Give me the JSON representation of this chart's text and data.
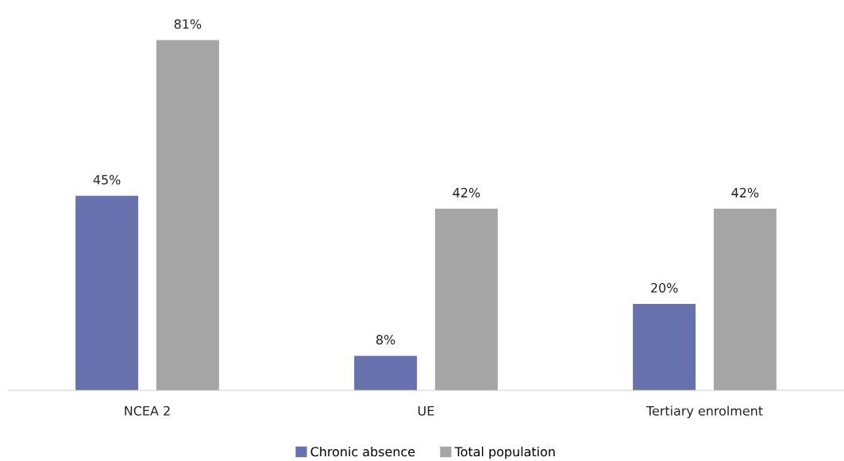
{
  "chart_data": {
    "type": "bar",
    "categories": [
      "NCEA 2",
      "UE",
      "Tertiary enrolment"
    ],
    "series": [
      {
        "name": "Chronic absence",
        "color": "#6771ad",
        "values": [
          45,
          8,
          20
        ],
        "value_labels": [
          "45%",
          "8%",
          "20%"
        ]
      },
      {
        "name": "Total population",
        "color": "#a5a5a5",
        "values": [
          81,
          42,
          42
        ],
        "value_labels": [
          "81%",
          "42%",
          "42%"
        ]
      }
    ],
    "legend": "bottom"
  }
}
